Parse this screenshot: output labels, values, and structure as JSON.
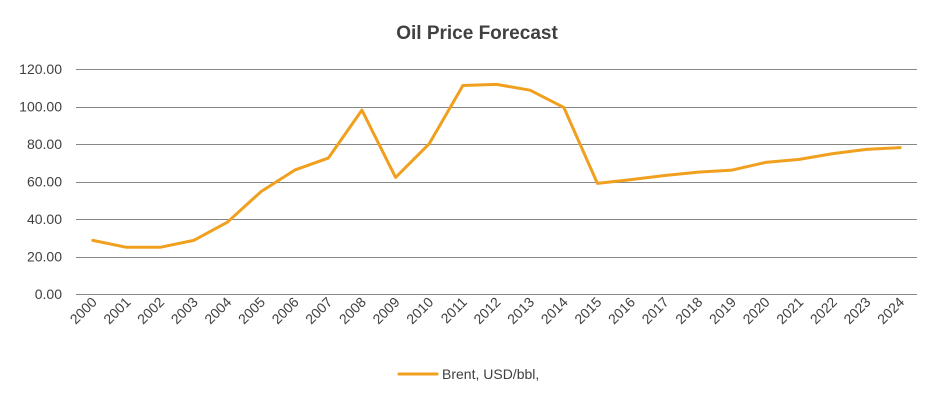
{
  "chart_data": {
    "type": "line",
    "title": "Oil Price Forecast",
    "xlabel": "",
    "ylabel": "",
    "ylim": [
      0,
      120
    ],
    "yticks": [
      0,
      20,
      40,
      60,
      80,
      100,
      120
    ],
    "ytick_labels": [
      "0.00",
      "20.00",
      "40.00",
      "60.00",
      "80.00",
      "100.00",
      "120.00"
    ],
    "grid": true,
    "legend_position": "bottom",
    "categories": [
      "2000",
      "2001",
      "2002",
      "2003",
      "2004",
      "2005",
      "2006",
      "2007",
      "2008",
      "2009",
      "2010",
      "2011",
      "2012",
      "2013",
      "2014",
      "2015",
      "2016",
      "2017",
      "2018",
      "2019",
      "2020",
      "2021",
      "2022",
      "2023",
      "2024"
    ],
    "series": [
      {
        "name": "Brent, USD/bbl,",
        "color": "#F0A01E",
        "values": [
          28.6,
          24.9,
          24.9,
          28.6,
          38.3,
          54.6,
          66.1,
          72.5,
          98.1,
          62.2,
          80.1,
          111.2,
          111.8,
          108.7,
          99.5,
          59.0,
          61.0,
          63.2,
          65.0,
          66.1,
          70.2,
          71.8,
          74.9,
          77.1,
          78.1
        ]
      }
    ]
  }
}
